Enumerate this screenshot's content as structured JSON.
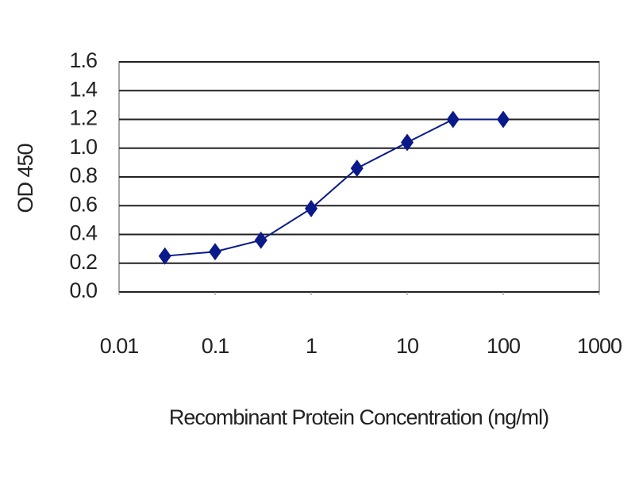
{
  "chart_data": {
    "type": "line",
    "x": [
      0.03,
      0.1,
      0.3,
      1,
      3,
      10,
      30,
      100
    ],
    "values": [
      0.25,
      0.28,
      0.36,
      0.58,
      0.86,
      1.04,
      1.2,
      1.2
    ],
    "color": "#0a1a8a",
    "xlabel": "Recombinant Protein Concentration (ng/ml)",
    "ylabel": "OD 450",
    "xscale": "log",
    "xlim": [
      0.01,
      1000
    ],
    "xticks": [
      0.01,
      0.1,
      1,
      10,
      100,
      1000
    ],
    "ylim": [
      0,
      1.6
    ],
    "yticks": [
      {
        "value": 0,
        "label": "0.0"
      },
      0.2,
      0.4,
      0.6,
      0.8,
      {
        "value": 1,
        "label": "1.0"
      },
      1.2,
      1.4,
      1.6
    ],
    "grid": true
  }
}
